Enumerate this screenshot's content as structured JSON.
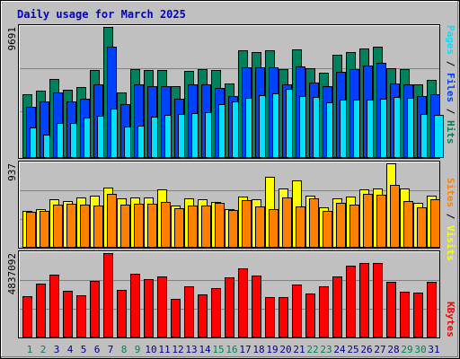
{
  "chart_data": [
    {
      "type": "bar",
      "title": "Daily usage for March 2025",
      "categories": [
        "1",
        "2",
        "3",
        "4",
        "5",
        "6",
        "7",
        "8",
        "9",
        "10",
        "11",
        "12",
        "13",
        "14",
        "15",
        "16",
        "17",
        "18",
        "19",
        "20",
        "21",
        "22",
        "23",
        "24",
        "25",
        "26",
        "27",
        "28",
        "29",
        "30",
        "31"
      ],
      "weekend_days": [
        "1",
        "2",
        "8",
        "9",
        "15",
        "16",
        "22",
        "23",
        "29",
        "30"
      ],
      "ylim": [
        0,
        9691
      ],
      "ytick_label": "9691",
      "right_label_parts": [
        "Pages",
        "Files",
        "Hits"
      ],
      "series": [
        {
          "name": "Hits",
          "color": "#00805c",
          "values": [
            4685,
            4990,
            5861,
            5041,
            5214,
            6529,
            9691,
            4836,
            6549,
            6499,
            6499,
            5309,
            6416,
            6544,
            6491,
            5519,
            7955,
            7844,
            7985,
            6584,
            8006,
            6669,
            6319,
            7630,
            7800,
            8088,
            8247,
            6639,
            6566,
            5414,
            5766
          ]
        },
        {
          "name": "Files",
          "color": "#0040ff",
          "values": [
            3788,
            4150,
            4850,
            4195,
            4376,
            5440,
            8202,
            3950,
            5458,
            5328,
            5324,
            4385,
            5424,
            5433,
            5210,
            4597,
            6719,
            6703,
            6695,
            5461,
            6738,
            5585,
            5343,
            6379,
            6568,
            6862,
            7005,
            5502,
            5413,
            4548,
            4723
          ]
        },
        {
          "name": "Pages",
          "color": "#00e0ff",
          "values": [
            2260,
            1714,
            2592,
            2616,
            2975,
            3103,
            3680,
            2332,
            2418,
            3024,
            3212,
            3256,
            3350,
            3392,
            3956,
            4213,
            4475,
            4653,
            4771,
            5133,
            4600,
            4488,
            4095,
            4333,
            4332,
            4332,
            4392,
            4514,
            4473,
            3228,
            3188
          ]
        }
      ]
    },
    {
      "type": "bar",
      "categories": [
        "1",
        "2",
        "3",
        "4",
        "5",
        "6",
        "7",
        "8",
        "9",
        "10",
        "11",
        "12",
        "13",
        "14",
        "15",
        "16",
        "17",
        "18",
        "19",
        "20",
        "21",
        "22",
        "23",
        "24",
        "25",
        "26",
        "27",
        "28",
        "29",
        "30",
        "31"
      ],
      "ylim": [
        0,
        937
      ],
      "ytick_label": "937",
      "right_label_parts": [
        "Sites",
        "Visits"
      ],
      "series": [
        {
          "name": "Visits",
          "color": "#ffff00",
          "values": [
            406,
            426,
            538,
            523,
            558,
            578,
            669,
            551,
            558,
            562,
            644,
            465,
            544,
            541,
            508,
            432,
            567,
            540,
            784,
            657,
            750,
            575,
            447,
            546,
            565,
            650,
            660,
            937,
            656,
            494,
            579
          ]
        },
        {
          "name": "Sites",
          "color": "#ff8000",
          "values": [
            403,
            412,
            479,
            485,
            475,
            469,
            603,
            476,
            487,
            492,
            507,
            435,
            469,
            469,
            497,
            421,
            531,
            462,
            431,
            561,
            463,
            546,
            405,
            499,
            477,
            594,
            593,
            694,
            521,
            452,
            538
          ]
        }
      ]
    },
    {
      "type": "bar",
      "categories": [
        "1",
        "2",
        "3",
        "4",
        "5",
        "6",
        "7",
        "8",
        "9",
        "10",
        "11",
        "12",
        "13",
        "14",
        "15",
        "16",
        "17",
        "18",
        "19",
        "20",
        "21",
        "22",
        "23",
        "24",
        "25",
        "26",
        "27",
        "28",
        "29",
        "30",
        "31"
      ],
      "ylim": [
        0,
        4837092
      ],
      "ytick_label": "4837092",
      "right_label_parts": [
        "KBytes"
      ],
      "series": [
        {
          "name": "KBytes",
          "color": "#ff0000",
          "values": [
            2380102,
            3107591,
            3577226,
            2687245,
            2428919,
            3259810,
            4837092,
            2709738,
            3675017,
            3325008,
            3476960,
            2233512,
            2952305,
            2476294,
            2821811,
            3451109,
            3961598,
            3526934,
            2330736,
            2294722,
            3033359,
            2504669,
            2937102,
            3509522,
            4094306,
            4261751,
            4287081,
            3195155,
            2616003,
            2572829,
            3184346
          ]
        }
      ]
    }
  ],
  "colors": {
    "background": "#c0c0c0",
    "title": "#0000c0",
    "weekday_label": "#00008b",
    "weekend_label": "#00805c"
  }
}
